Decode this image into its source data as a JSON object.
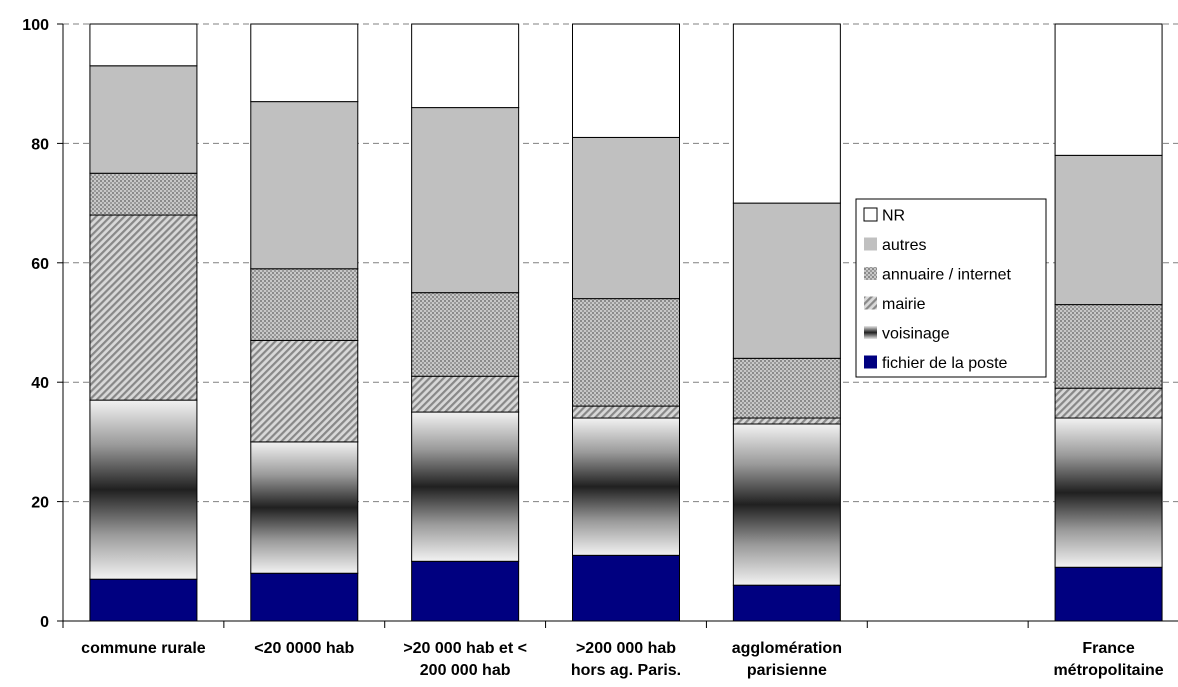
{
  "chart_data": {
    "type": "bar",
    "stacked": true,
    "categories": [
      [
        "commune rurale"
      ],
      [
        "<20 0000 hab"
      ],
      [
        ">20 000 hab et <",
        "200 000 hab"
      ],
      [
        ">200 000 hab",
        "hors ag. Paris."
      ],
      [
        "agglomération",
        "parisienne"
      ],
      [
        ""
      ],
      [
        "France",
        "métropolitaine"
      ]
    ],
    "series": [
      {
        "name": "fichier de la poste",
        "values": [
          7,
          8,
          10,
          11,
          6,
          null,
          9
        ]
      },
      {
        "name": "voisinage",
        "values": [
          30,
          22,
          25,
          23,
          27,
          null,
          25
        ]
      },
      {
        "name": "mairie",
        "values": [
          31,
          17,
          6,
          2,
          1,
          null,
          5
        ]
      },
      {
        "name": "annuaire / internet",
        "values": [
          7,
          12,
          14,
          18,
          10,
          null,
          14
        ]
      },
      {
        "name": "autres",
        "values": [
          18,
          28,
          31,
          27,
          26,
          null,
          25
        ]
      },
      {
        "name": "NR",
        "values": [
          7,
          13,
          14,
          19,
          30,
          null,
          22
        ]
      }
    ],
    "ylim": [
      0,
      100
    ],
    "yticks": [
      0,
      20,
      40,
      60,
      80,
      100
    ],
    "grid": "horizontal dashed",
    "legend_position": "right",
    "legend_order": [
      "NR",
      "autres",
      "annuaire / internet",
      "mairie",
      "voisinage",
      "fichier de la poste"
    ],
    "colors": {
      "fichier de la poste": "#000080",
      "voisinage": "gradient-black-center",
      "mairie": "#9a9a9a-diagonal-hatch",
      "annuaire / internet": "#a8a8a8-dotted",
      "autres": "#c0c0c0",
      "NR": "#ffffff"
    }
  }
}
